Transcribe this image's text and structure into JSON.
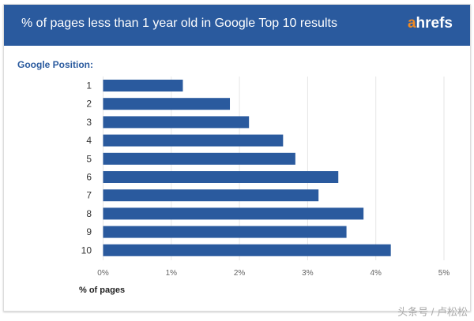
{
  "header": {
    "title": "% of pages less than 1 year old in Google Top 10 results",
    "logo": "ahrefs"
  },
  "watermark": "头条号 / 卢松松",
  "chart_data": {
    "type": "bar",
    "orientation": "horizontal",
    "title": "% of pages less than 1 year old in Google Top 10 results",
    "ylabel": "Google Position:",
    "xlabel": "% of pages",
    "categories": [
      "1",
      "2",
      "3",
      "4",
      "5",
      "6",
      "7",
      "8",
      "9",
      "10"
    ],
    "values": [
      1.17,
      1.86,
      2.14,
      2.64,
      2.82,
      3.45,
      3.16,
      3.82,
      3.57,
      4.22
    ],
    "xlim": [
      0,
      5
    ],
    "xticks": [
      "0%",
      "1%",
      "2%",
      "3%",
      "4%",
      "5%"
    ],
    "grid": true,
    "colors": {
      "bar": "#2a5a9e",
      "header": "#2a5a9e",
      "logo_accent": "#f08a24"
    }
  }
}
